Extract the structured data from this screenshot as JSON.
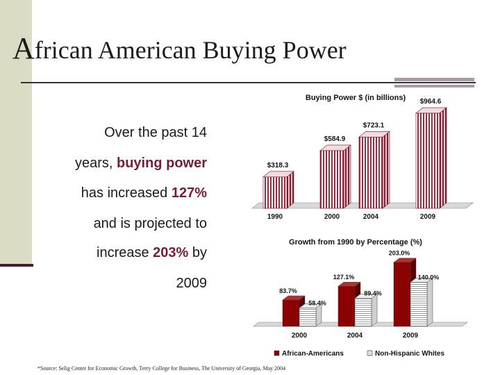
{
  "slide": {
    "title_first": "A",
    "title_rest": "frican American Buying Power"
  },
  "text": {
    "line1": "Over the past 14",
    "line2_pre": "years, ",
    "line2_hl": "buying power",
    "line3_pre": "has increased ",
    "line3_hl": "127%",
    "line4": "and is projected to",
    "line5_pre": "increase ",
    "line5_hl": "203%",
    "line5_post": " by",
    "line6": "2009"
  },
  "source": "*Source: Selig Center for Economic Growth, Terry College for Business, The University of Georgia, May 2004",
  "colors": {
    "accent": "#7a1a3a",
    "bar_dark": "#8b0000",
    "bar_light": "#ffffff",
    "left_bar": "#dcdcc4"
  },
  "chart_data": [
    {
      "type": "bar",
      "title": "Buying Power $ (in billions)",
      "categories": [
        "1990",
        "2000",
        "2004",
        "2009"
      ],
      "values": [
        318.3,
        584.9,
        723.1,
        964.6
      ],
      "data_labels": [
        "$318.3",
        "$584.9",
        "$723.1",
        "$964.6"
      ],
      "ylim": [
        0,
        1000
      ],
      "style": "3d-striped"
    },
    {
      "type": "bar",
      "title": "Growth from 1990 by Percentage (%)",
      "categories": [
        "2000",
        "2004",
        "2009"
      ],
      "series": [
        {
          "name": "African-Americans",
          "values": [
            83.7,
            127.1,
            203.0
          ],
          "labels": [
            "83.7%",
            "127.1%",
            "203.0%"
          ]
        },
        {
          "name": "Non-Hispanic Whites",
          "values": [
            58.4,
            89.4,
            140.0
          ],
          "labels": [
            "58.4%",
            "89.4%",
            "140.0%"
          ]
        }
      ],
      "ylim": [
        0,
        220
      ],
      "legend": "bottom"
    }
  ]
}
